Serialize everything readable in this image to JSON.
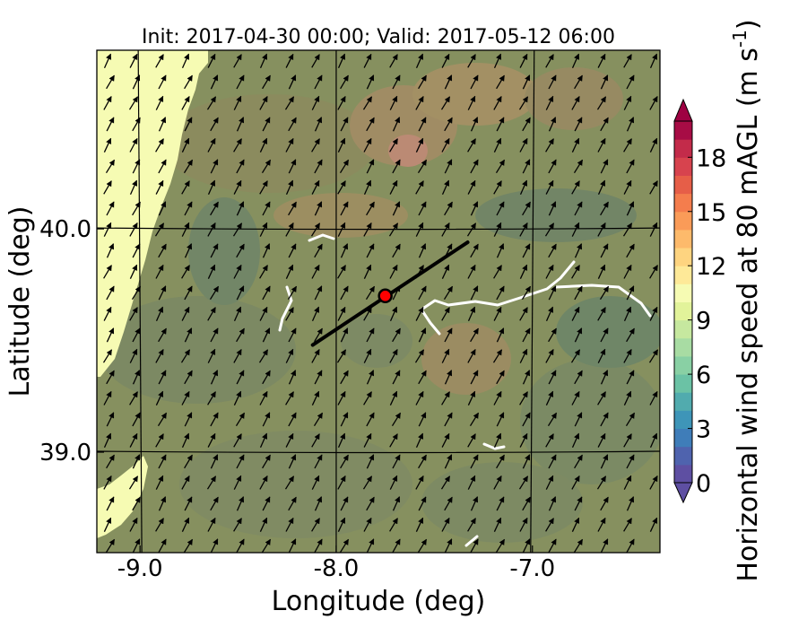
{
  "title": "Init: 2017-04-30 00:00; Valid: 2017-05-12 06:00",
  "xaxis": {
    "label": "Longitude (deg)",
    "ticks": [
      {
        "value": -9.0,
        "label": "-9.0"
      },
      {
        "value": -8.0,
        "label": "-8.0"
      },
      {
        "value": -7.0,
        "label": "-7.0"
      }
    ],
    "range": [
      -9.22,
      -6.35
    ]
  },
  "yaxis": {
    "label": "Latitude (deg)",
    "ticks": [
      {
        "value": 40.0,
        "label": "40.0"
      },
      {
        "value": 39.0,
        "label": "39.0"
      }
    ],
    "range": [
      38.55,
      40.8
    ]
  },
  "colorbar": {
    "label": "Horizontal wind speed at 80 mAGL (m s",
    "label_sup": "-1",
    "label_close": ")",
    "min": 0,
    "max": 20,
    "step": 1,
    "ticks": [
      {
        "value": 0,
        "label": "0"
      },
      {
        "value": 3,
        "label": "3"
      },
      {
        "value": 6,
        "label": "6"
      },
      {
        "value": 9,
        "label": "9"
      },
      {
        "value": 12,
        "label": "12"
      },
      {
        "value": 15,
        "label": "15"
      },
      {
        "value": 18,
        "label": "18"
      }
    ],
    "colors": [
      "#5e4fa2",
      "#4f63ae",
      "#3f7db9",
      "#3e95b8",
      "#51abae",
      "#6bc2a5",
      "#89d0a4",
      "#a8dca3",
      "#c6e89f",
      "#e2f39a",
      "#f6fbb3",
      "#fee998",
      "#fed480",
      "#fdba6b",
      "#fa9b58",
      "#f47d4d",
      "#e65e48",
      "#d7434e",
      "#c32b4a",
      "#a70c45"
    ],
    "extend_under": "#5e4fa2",
    "extend_over": "#9e0142"
  },
  "marker": {
    "lon": -7.75,
    "lat": 39.7,
    "color": "#ff0000"
  },
  "transect": {
    "start": [
      -8.12,
      39.48
    ],
    "end": [
      -7.33,
      39.94
    ]
  },
  "graticule_lon": [
    -9.0,
    -8.0,
    -7.0
  ],
  "graticule_lat": [
    40.0,
    39.0
  ],
  "colors": {
    "land": "#7f8a5a",
    "ocean_fill": "#f6fbb3",
    "coast": "#f0f59c"
  }
}
